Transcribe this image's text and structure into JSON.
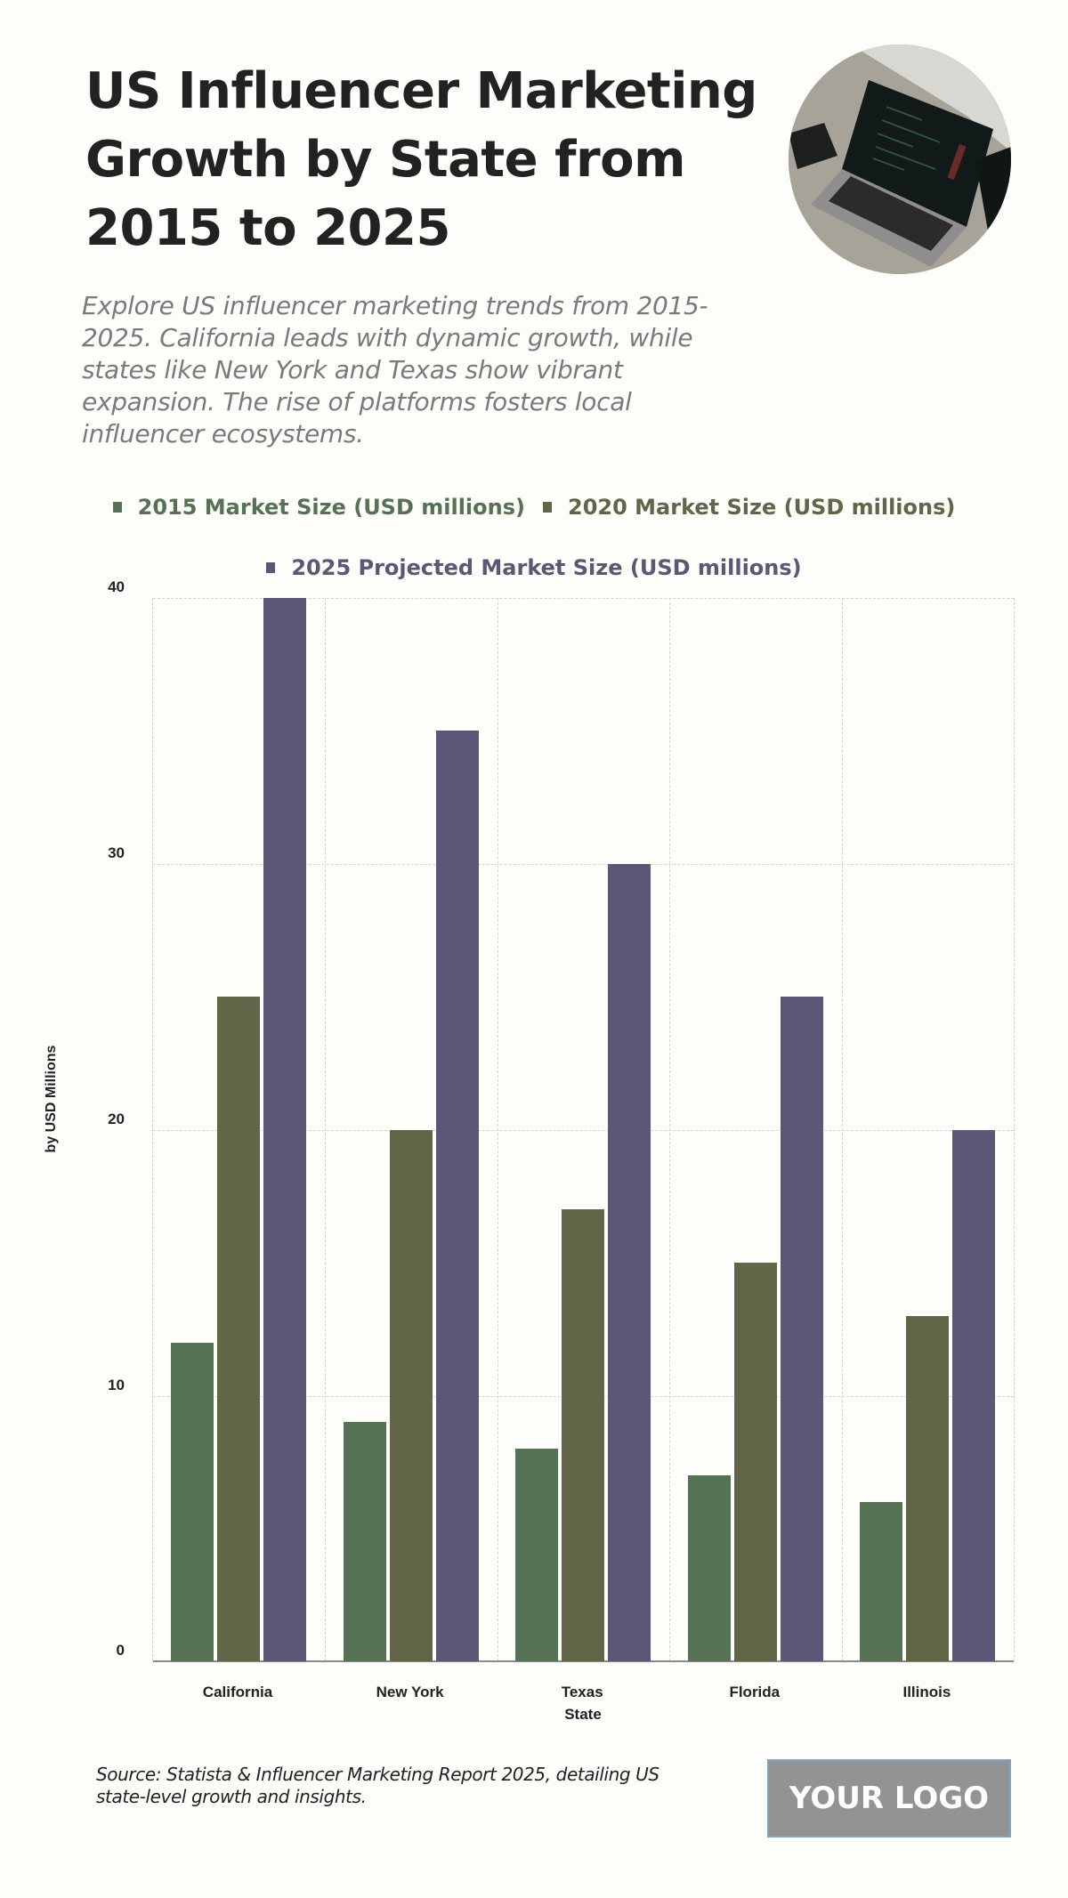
{
  "header": {
    "title": "US Influencer Marketing Growth by State from 2015 to 2025",
    "subtitle": "Explore US influencer marketing trends from 2015-2025. California leads with dynamic growth, while states like New York and Texas show vibrant expansion. The rise of platforms fosters local influencer ecosystems.",
    "photo_alt": "laptop-photo"
  },
  "legend": [
    {
      "label": "2015 Market Size (USD millions)",
      "color": "#567254"
    },
    {
      "label": "2020 Market Size (USD millions)",
      "color": "#636548"
    },
    {
      "label": "2025 Projected Market Size (USD millions)",
      "color": "#5b5776"
    }
  ],
  "axes": {
    "ylabel": "by USD Millions",
    "xlabel": "State",
    "yticks": [
      "0",
      "10",
      "20",
      "30",
      "40"
    ]
  },
  "chart_data": {
    "type": "bar",
    "title": "US Influencer Marketing Growth by State from 2015 to 2025",
    "xlabel": "State",
    "ylabel": "by USD Millions",
    "ylim": [
      0,
      40
    ],
    "yticks": [
      0,
      10,
      20,
      30,
      40
    ],
    "grid": true,
    "legend_position": "top",
    "categories": [
      "California",
      "New York",
      "Texas",
      "Florida",
      "Illinois"
    ],
    "series": [
      {
        "name": "2015 Market Size (USD millions)",
        "color": "#567254",
        "values": [
          12,
          9,
          8,
          7,
          6
        ]
      },
      {
        "name": "2020 Market Size (USD millions)",
        "color": "#636548",
        "values": [
          25,
          20,
          17,
          15,
          13
        ]
      },
      {
        "name": "2025 Projected Market Size (USD millions)",
        "color": "#5b5776",
        "values": [
          40,
          35,
          30,
          25,
          20
        ]
      }
    ]
  },
  "footer": {
    "source": "Source: Statista & Influencer Marketing Report 2025, detailing US state-level growth and insights.",
    "logo": "YOUR LOGO"
  }
}
